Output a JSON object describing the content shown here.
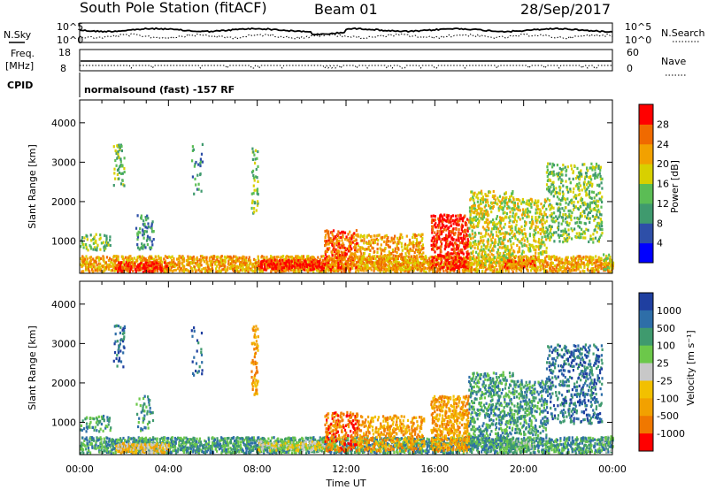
{
  "header": {
    "station": "South Pole Station (fitACF)",
    "beam": "Beam 01",
    "date": "28/Sep/2017"
  },
  "noise_panel": {
    "left_label": "N.Sky",
    "right_label": "N.Search",
    "left_ticks": [
      "10^5",
      "10^0"
    ],
    "right_ticks": [
      "10^5",
      "10^0"
    ]
  },
  "freq_panel": {
    "left_label_1": "Freq.",
    "left_label_2": "[MHz]",
    "right_label": "Nave",
    "left_ticks": [
      "18",
      "8"
    ],
    "right_ticks": [
      "60",
      "0"
    ]
  },
  "cpid_panel": {
    "label": "CPID",
    "text": "normalsound (fast) -157 RF"
  },
  "colors": {
    "power": [
      "#0000ff",
      "#2e4fa8",
      "#3f9a6e",
      "#5bbd55",
      "#d8d000",
      "#f2a100",
      "#f06a00",
      "#ff0000"
    ],
    "velocity": [
      "#1f3fa0",
      "#2e6ea8",
      "#3f9a6e",
      "#6cc84a",
      "#c8c8c8",
      "#f2c000",
      "#f2a100",
      "#f07800",
      "#ff0000"
    ]
  },
  "chart_data": [
    {
      "type": "heatmap",
      "name": "power",
      "ylabel": "Slant Range [km]",
      "xlabel": "Time UT",
      "x_ticks": [
        "00:00",
        "04:00",
        "08:00",
        "12:00",
        "16:00",
        "20:00",
        "00:00"
      ],
      "y_ticks": [
        "1000",
        "2000",
        "3000",
        "4000"
      ],
      "ylim": [
        180,
        4580
      ],
      "colorbar": {
        "label": "Power [dB]",
        "ticks": [
          "4",
          "8",
          "12",
          "16",
          "20",
          "24",
          "28"
        ]
      }
    },
    {
      "type": "heatmap",
      "name": "velocity",
      "ylabel": "Slant Range [km]",
      "xlabel": "Time UT",
      "x_ticks": [
        "00:00",
        "04:00",
        "08:00",
        "12:00",
        "16:00",
        "20:00",
        "00:00"
      ],
      "y_ticks": [
        "1000",
        "2000",
        "3000",
        "4000"
      ],
      "ylim": [
        180,
        4580
      ],
      "colorbar": {
        "label": "Velocity [m s⁻¹]",
        "ticks": [
          "1000",
          "500",
          "100",
          "25",
          "-25",
          "-100",
          "-500",
          "-1000"
        ]
      }
    }
  ]
}
